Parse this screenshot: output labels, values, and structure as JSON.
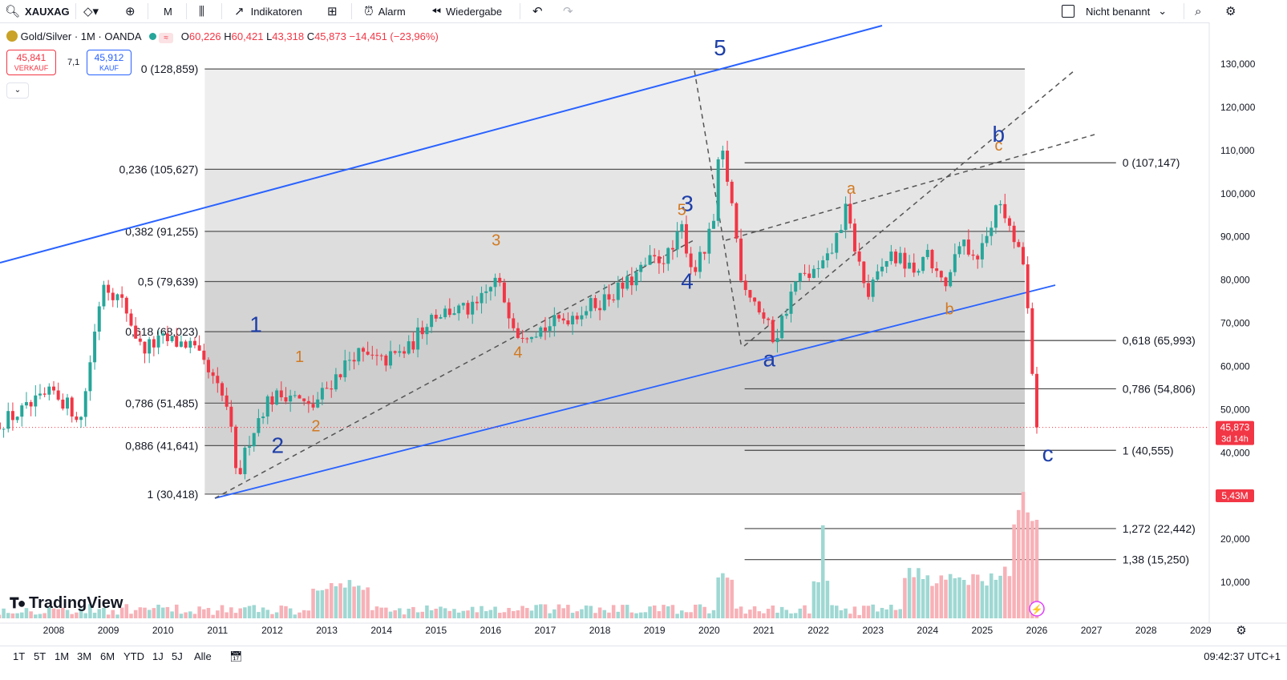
{
  "toolbar": {
    "symbol": "XAUXAG",
    "interval": "M",
    "indicators_label": "Indikatoren",
    "alert_label": "Alarm",
    "replay_label": "Wiedergabe",
    "layout_name": "Nicht benannt"
  },
  "legend": {
    "title": "Gold/Silver · 1M · OANDA",
    "open_label": "O",
    "open": "60,226",
    "high_label": "H",
    "high": "60,421",
    "low_label": "L",
    "low": "43,318",
    "close_label": "C",
    "close": "45,873",
    "change": "−14,451 (−23,96%)",
    "sell_price": "45,841",
    "sell_label": "VERKAUF",
    "spread": "7,1",
    "buy_price": "45,912",
    "buy_label": "KAUF"
  },
  "price_tag": {
    "value": "45,873",
    "countdown": "3d 14h"
  },
  "volume_tag": "5,43M",
  "logo_text": "TradingView",
  "timeframes": [
    "1T",
    "5T",
    "1M",
    "3M",
    "6M",
    "YTD",
    "1J",
    "5J",
    "Alle"
  ],
  "clock": "09:42:37 UTC+1",
  "colors": {
    "up": "#26a69a",
    "down": "#f23645",
    "wave_blue": "#1e3fa8",
    "wave_orange": "#d17a22",
    "trend_blue": "#2962ff"
  },
  "chart_data": {
    "type": "candlestick",
    "title": "Gold/Silver · 1M · OANDA",
    "x_ticks": [
      "2008",
      "2009",
      "2010",
      "2011",
      "2012",
      "2013",
      "2014",
      "2015",
      "2016",
      "2017",
      "2018",
      "2019",
      "2020",
      "2021",
      "2022",
      "2023",
      "2024",
      "2025",
      "2026",
      "2027",
      "2028",
      "2029"
    ],
    "y_ticks": [
      "130,000",
      "120,000",
      "110,000",
      "100,000",
      "90,000",
      "80,000",
      "70,000",
      "60,000",
      "50,000",
      "40,000",
      "30,000",
      "20,000",
      "10,000"
    ],
    "y_range": [
      5,
      136
    ],
    "x_range": [
      2007.0,
      2029.9
    ],
    "last_price": 45.873,
    "price_path": [
      [
        2007.0,
        47
      ],
      [
        2007.5,
        50
      ],
      [
        2008.0,
        54
      ],
      [
        2008.5,
        48
      ],
      [
        2008.8,
        72
      ],
      [
        2008.9,
        80
      ],
      [
        2009.3,
        74
      ],
      [
        2009.6,
        64
      ],
      [
        2010.0,
        66
      ],
      [
        2010.5,
        65
      ],
      [
        2010.9,
        57
      ],
      [
        2011.2,
        50
      ],
      [
        2011.35,
        33
      ],
      [
        2011.6,
        44
      ],
      [
        2011.9,
        52
      ],
      [
        2012.3,
        54
      ],
      [
        2012.7,
        50
      ],
      [
        2013.0,
        55
      ],
      [
        2013.5,
        63
      ],
      [
        2014.0,
        61
      ],
      [
        2014.5,
        64
      ],
      [
        2014.9,
        72
      ],
      [
        2015.3,
        73
      ],
      [
        2015.7,
        73
      ],
      [
        2016.1,
        80
      ],
      [
        2016.5,
        68
      ],
      [
        2017.0,
        69
      ],
      [
        2017.5,
        72
      ],
      [
        2018.0,
        75
      ],
      [
        2018.5,
        79
      ],
      [
        2018.9,
        84
      ],
      [
        2019.3,
        86
      ],
      [
        2019.5,
        92
      ],
      [
        2019.7,
        82
      ],
      [
        2019.9,
        86
      ],
      [
        2020.1,
        94
      ],
      [
        2020.2,
        112
      ],
      [
        2020.4,
        99
      ],
      [
        2020.6,
        80
      ],
      [
        2020.8,
        76
      ],
      [
        2021.2,
        66
      ],
      [
        2021.6,
        80
      ],
      [
        2022.0,
        82
      ],
      [
        2022.2,
        85
      ],
      [
        2022.5,
        96
      ],
      [
        2022.9,
        76
      ],
      [
        2023.3,
        86
      ],
      [
        2023.8,
        82
      ],
      [
        2024.0,
        85
      ],
      [
        2024.3,
        78
      ],
      [
        2024.6,
        88
      ],
      [
        2024.9,
        86
      ],
      [
        2025.1,
        90
      ],
      [
        2025.3,
        101
      ],
      [
        2025.5,
        92
      ],
      [
        2025.8,
        82
      ],
      [
        2025.9,
        62
      ],
      [
        2026.0,
        45.873
      ]
    ],
    "fibonacci_left": [
      {
        "label": "0 (128,859)",
        "value": 128.859
      },
      {
        "label": "0,236 (105,627)",
        "value": 105.627
      },
      {
        "label": "0,382 (91,255)",
        "value": 91.255
      },
      {
        "label": "0,5 (79,639)",
        "value": 79.639
      },
      {
        "label": "0,618 (68,023)",
        "value": 68.023
      },
      {
        "label": "0,786 (51,485)",
        "value": 51.485
      },
      {
        "label": "0,886 (41,641)",
        "value": 41.641
      },
      {
        "label": "1 (30,418)",
        "value": 30.418
      }
    ],
    "fibonacci_right": [
      {
        "label": "0 (107,147)",
        "value": 107.147
      },
      {
        "label": "0,618 (65,993)",
        "value": 65.993
      },
      {
        "label": "0,786 (54,806)",
        "value": 54.806
      },
      {
        "label": "1 (40,555)",
        "value": 40.555
      },
      {
        "label": "1,272 (22,442)",
        "value": 22.442
      },
      {
        "label": "1,38 (15,250)",
        "value": 15.25
      }
    ],
    "wave_labels": [
      {
        "text": "1",
        "x": 2011.7,
        "y": 68,
        "color": "blue",
        "size": "l"
      },
      {
        "text": "2",
        "x": 2012.1,
        "y": 40,
        "color": "blue",
        "size": "l"
      },
      {
        "text": "3",
        "x": 2019.6,
        "y": 96,
        "color": "blue",
        "size": "l"
      },
      {
        "text": "4",
        "x": 2019.6,
        "y": 78,
        "color": "blue",
        "size": "l"
      },
      {
        "text": "5",
        "x": 2020.2,
        "y": 132,
        "color": "blue",
        "size": "l"
      },
      {
        "text": "a",
        "x": 2021.1,
        "y": 60,
        "color": "blue",
        "size": "l"
      },
      {
        "text": "b",
        "x": 2025.3,
        "y": 112,
        "color": "blue",
        "size": "l"
      },
      {
        "text": "c",
        "x": 2026.2,
        "y": 38,
        "color": "blue",
        "size": "l"
      },
      {
        "text": "1",
        "x": 2012.5,
        "y": 61,
        "color": "orange",
        "size": "s"
      },
      {
        "text": "2",
        "x": 2012.8,
        "y": 45,
        "color": "orange",
        "size": "s"
      },
      {
        "text": "3",
        "x": 2016.1,
        "y": 88,
        "color": "orange",
        "size": "s"
      },
      {
        "text": "4",
        "x": 2016.5,
        "y": 62,
        "color": "orange",
        "size": "s"
      },
      {
        "text": "5",
        "x": 2019.5,
        "y": 95,
        "color": "orange",
        "size": "s"
      },
      {
        "text": "a",
        "x": 2022.6,
        "y": 100,
        "color": "orange",
        "size": "s"
      },
      {
        "text": "b",
        "x": 2024.4,
        "y": 72,
        "color": "orange",
        "size": "s"
      },
      {
        "text": "c",
        "x": 2025.3,
        "y": 110,
        "color": "orange",
        "size": "s"
      }
    ]
  }
}
